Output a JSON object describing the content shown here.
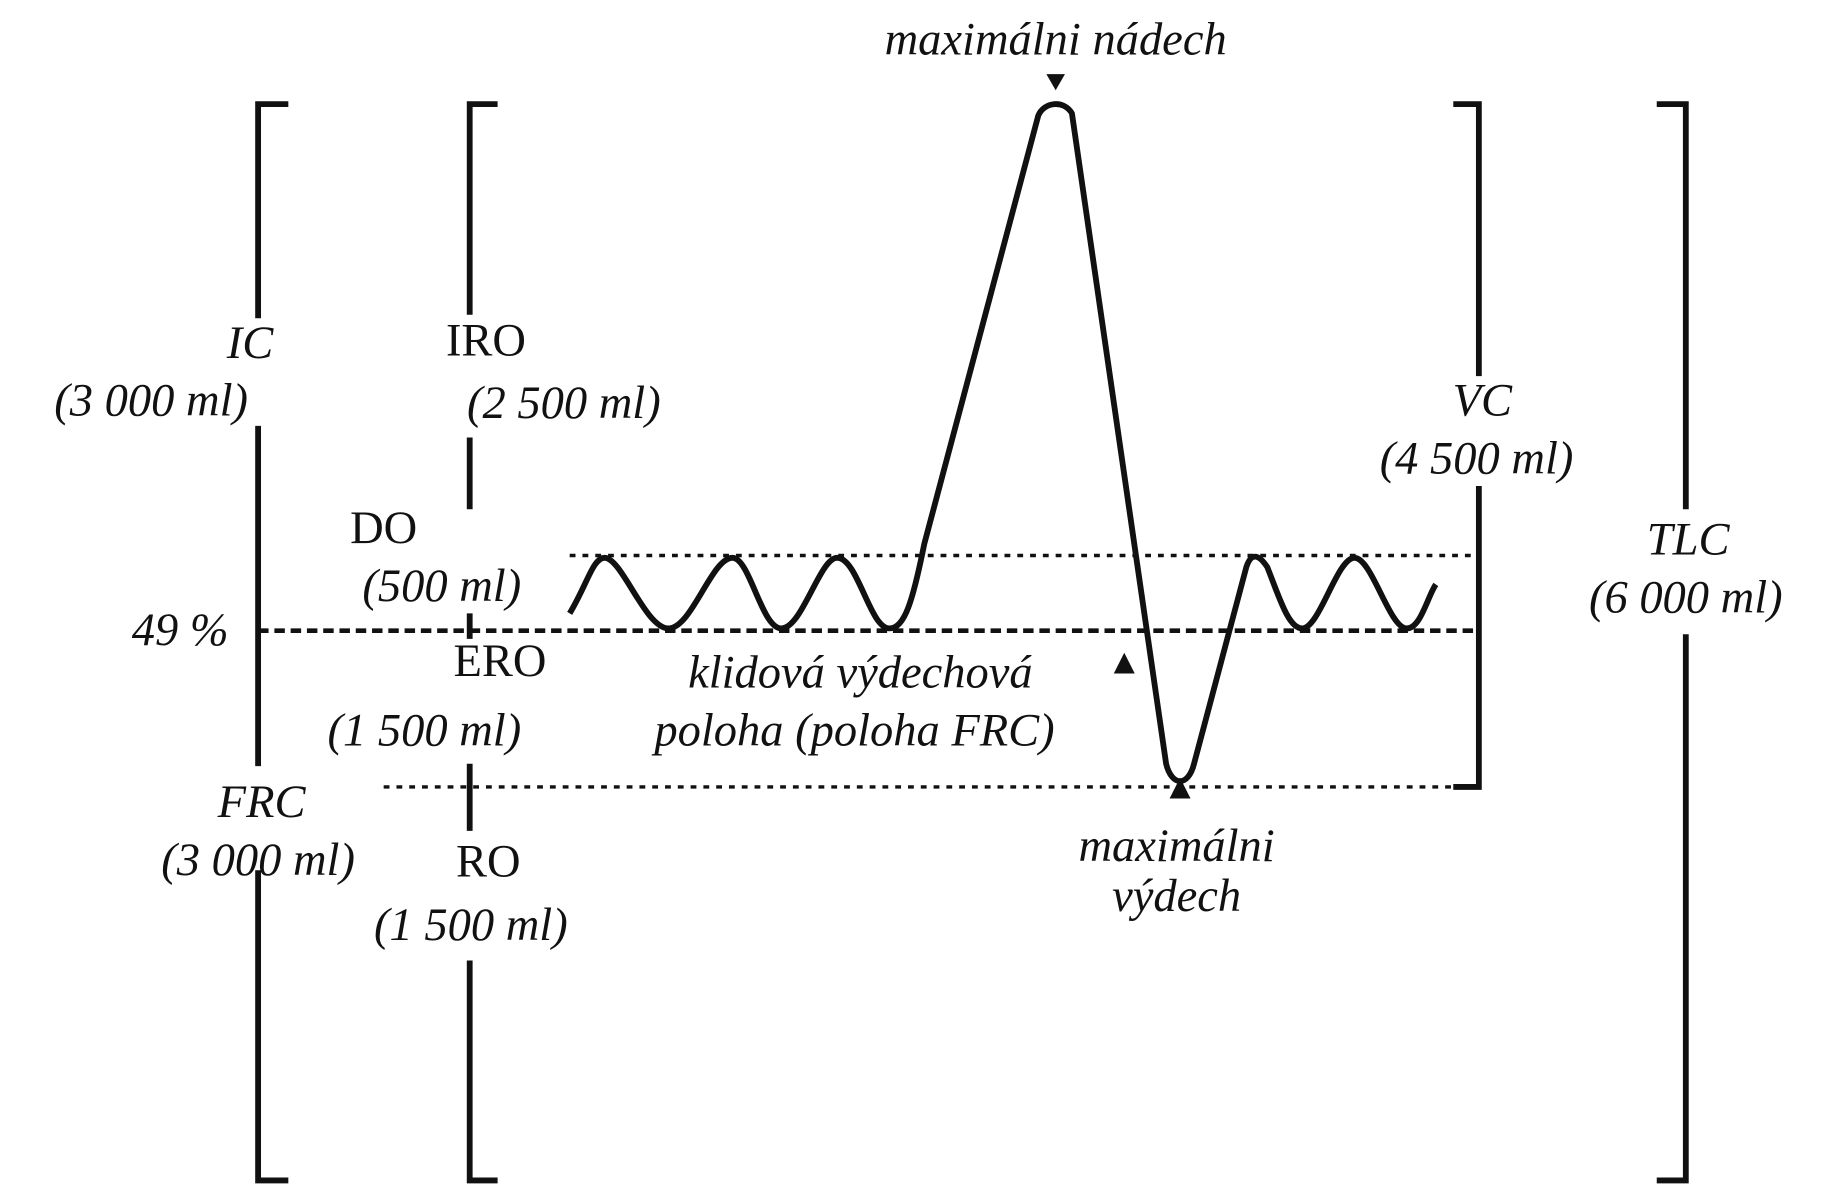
{
  "top_label": "maximálni nádech",
  "ic": {
    "name": "IC",
    "volume": "(3 000 ml)"
  },
  "iro": {
    "name": "IRO",
    "volume": "(2 500 ml)"
  },
  "vc": {
    "name": "VC",
    "volume": "(4 500 ml)"
  },
  "tlc": {
    "name": "TLC",
    "volume": "(6 000 ml)"
  },
  "do": {
    "name": "DO",
    "volume": "(500 ml)"
  },
  "percent": "49 %",
  "ero": {
    "name": "ERO",
    "volume": "(1 500 ml)"
  },
  "resting_label": [
    "klidová výdechová",
    "poloha (poloha FRC)"
  ],
  "frc": {
    "name": "FRC",
    "volume": "(3 000 ml)"
  },
  "ro": {
    "name": "RO",
    "volume": "(1 500 ml)"
  },
  "bottom_label": [
    "maximálni",
    "výdech"
  ]
}
